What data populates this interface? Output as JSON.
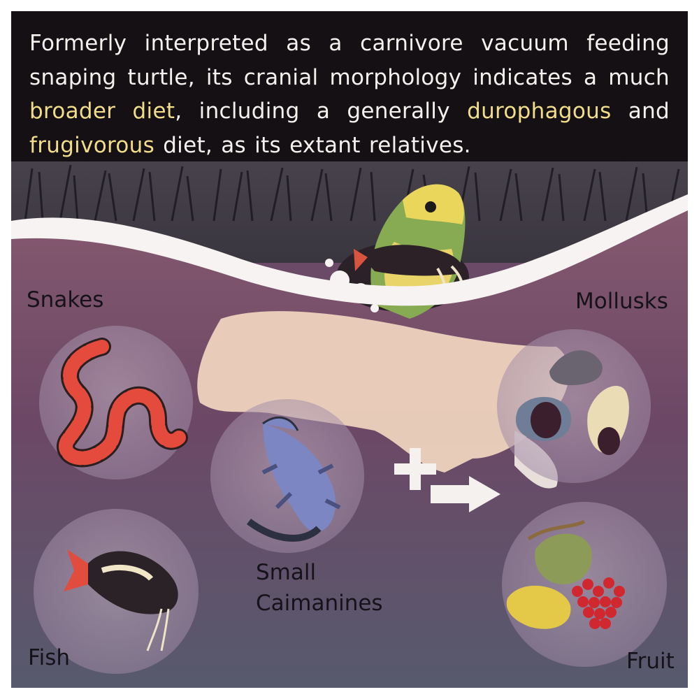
{
  "caption": {
    "seg1": "Formerly interpreted as a carnivore vacuum feeding snaping turtle, its cranial morphology indicates a much ",
    "hl1": "broader diet",
    "seg2": ", including a generally ",
    "hl2": "durophagous",
    "seg3": " and ",
    "hl3": "frugivorous",
    "seg4": " diet, as its extant relatives."
  },
  "labels": {
    "snakes": "Snakes",
    "mollusks": "Mollusks",
    "caimanines_line1": "Small",
    "caimanines_line2": "Caimanines",
    "fish": "Fish",
    "fruit": "Fruit"
  },
  "colors": {
    "caption_bg": "#141013",
    "caption_text": "#f4f1ee",
    "highlight": "#f1dd8a",
    "water_top": "#7c5372",
    "water_bottom": "#5c5a6e",
    "bubble_fill": "#b9a3b8"
  },
  "icons": [
    "turtle-illustration",
    "snake-icon",
    "fish-icon",
    "caiman-icon",
    "mollusk-icon",
    "fruit-icon",
    "plus-icon",
    "arrow-icon"
  ]
}
